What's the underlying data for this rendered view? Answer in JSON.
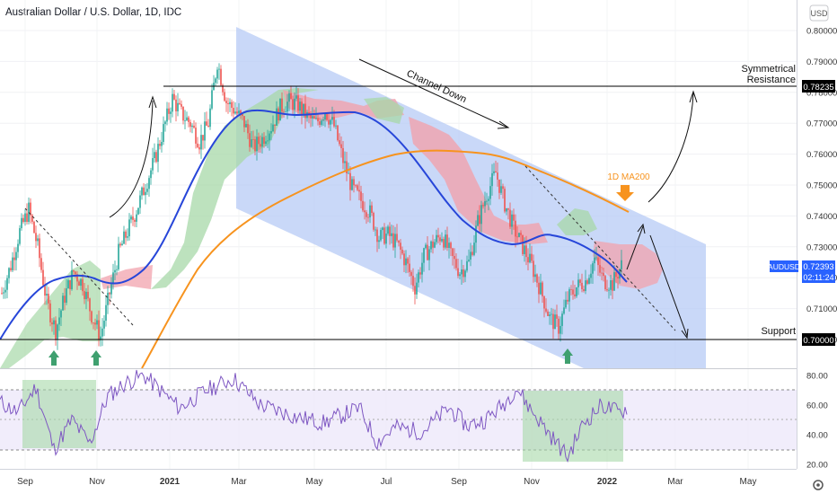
{
  "header": {
    "title": "Australian Dollar / U.S. Dollar, 1D, IDC",
    "currency": "USD"
  },
  "chart_data": {
    "type": "candlestick",
    "symbol": "AUDUSD",
    "price_axis": {
      "ticks": [
        0.8,
        0.79,
        0.78,
        0.77,
        0.76,
        0.75,
        0.74,
        0.73,
        0.72,
        0.71,
        0.7
      ],
      "tick_labels": [
        "0.80000",
        "0.79000",
        "0.78000",
        "0.77000",
        "0.76000",
        "0.75000",
        "0.74000",
        "0.73000",
        "0.72000",
        "0.71000",
        "0.70000"
      ],
      "ylim": [
        0.6985,
        0.8035
      ]
    },
    "rsi_axis": {
      "ticks": [
        80,
        60,
        40,
        20
      ],
      "tick_labels": [
        "80.00",
        "60.00",
        "40.00",
        "20.00"
      ],
      "upper_band": 70,
      "lower_band": 30
    },
    "time_axis": {
      "labels": [
        "Sep",
        "Nov",
        "2021",
        "Mar",
        "May",
        "Jul",
        "Sep",
        "Nov",
        "2022",
        "Mar",
        "May"
      ],
      "bold": [
        "2021",
        "2022"
      ]
    },
    "price_labels": [
      {
        "name": "resistance",
        "value": "0.78235",
        "color": "#000000"
      },
      {
        "name": "current",
        "value": "0.72393",
        "color": "#2962ff"
      },
      {
        "name": "support",
        "value": "0.70000",
        "color": "#000000"
      }
    ],
    "symbol_tag": "AUDUSD",
    "countdown": "02:11:24",
    "annotations": {
      "channel": "Channel Down",
      "ma200": "1D MA200",
      "resistance_line1": "Symmetrical",
      "resistance_line2": "Resistance",
      "support": "Support"
    },
    "levels": {
      "resistance": 0.78235,
      "support": 0.7
    },
    "ohlc_series": [
      {
        "x": 0,
        "y": 0.715
      },
      {
        "x": 5,
        "y": 0.724
      },
      {
        "x": 10,
        "y": 0.735
      },
      {
        "x": 15,
        "y": 0.742
      },
      {
        "x": 20,
        "y": 0.73
      },
      {
        "x": 25,
        "y": 0.712
      },
      {
        "x": 30,
        "y": 0.703
      },
      {
        "x": 35,
        "y": 0.714
      },
      {
        "x": 40,
        "y": 0.722
      },
      {
        "x": 45,
        "y": 0.718
      },
      {
        "x": 50,
        "y": 0.708
      },
      {
        "x": 55,
        "y": 0.701
      },
      {
        "x": 60,
        "y": 0.715
      },
      {
        "x": 65,
        "y": 0.728
      },
      {
        "x": 70,
        "y": 0.735
      },
      {
        "x": 75,
        "y": 0.742
      },
      {
        "x": 80,
        "y": 0.75
      },
      {
        "x": 85,
        "y": 0.758
      },
      {
        "x": 90,
        "y": 0.768
      },
      {
        "x": 95,
        "y": 0.778
      },
      {
        "x": 100,
        "y": 0.773
      },
      {
        "x": 105,
        "y": 0.77
      },
      {
        "x": 110,
        "y": 0.764
      },
      {
        "x": 115,
        "y": 0.77
      },
      {
        "x": 120,
        "y": 0.79
      },
      {
        "x": 125,
        "y": 0.777
      },
      {
        "x": 130,
        "y": 0.774
      },
      {
        "x": 135,
        "y": 0.77
      },
      {
        "x": 140,
        "y": 0.762
      },
      {
        "x": 145,
        "y": 0.765
      },
      {
        "x": 150,
        "y": 0.769
      },
      {
        "x": 155,
        "y": 0.775
      },
      {
        "x": 160,
        "y": 0.777
      },
      {
        "x": 165,
        "y": 0.776
      },
      {
        "x": 170,
        "y": 0.772
      },
      {
        "x": 175,
        "y": 0.77
      },
      {
        "x": 180,
        "y": 0.774
      },
      {
        "x": 185,
        "y": 0.769
      },
      {
        "x": 190,
        "y": 0.758
      },
      {
        "x": 195,
        "y": 0.749
      },
      {
        "x": 200,
        "y": 0.745
      },
      {
        "x": 205,
        "y": 0.741
      },
      {
        "x": 210,
        "y": 0.733
      },
      {
        "x": 215,
        "y": 0.734
      },
      {
        "x": 220,
        "y": 0.731
      },
      {
        "x": 225,
        "y": 0.725
      },
      {
        "x": 230,
        "y": 0.717
      },
      {
        "x": 235,
        "y": 0.727
      },
      {
        "x": 240,
        "y": 0.731
      },
      {
        "x": 245,
        "y": 0.734
      },
      {
        "x": 250,
        "y": 0.727
      },
      {
        "x": 255,
        "y": 0.722
      },
      {
        "x": 260,
        "y": 0.725
      },
      {
        "x": 265,
        "y": 0.738
      },
      {
        "x": 270,
        "y": 0.747
      },
      {
        "x": 275,
        "y": 0.754
      },
      {
        "x": 280,
        "y": 0.744
      },
      {
        "x": 285,
        "y": 0.736
      },
      {
        "x": 290,
        "y": 0.73
      },
      {
        "x": 295,
        "y": 0.724
      },
      {
        "x": 300,
        "y": 0.716
      },
      {
        "x": 305,
        "y": 0.707
      },
      {
        "x": 310,
        "y": 0.704
      },
      {
        "x": 315,
        "y": 0.713
      },
      {
        "x": 320,
        "y": 0.717
      },
      {
        "x": 325,
        "y": 0.719
      },
      {
        "x": 330,
        "y": 0.726
      },
      {
        "x": 335,
        "y": 0.719
      },
      {
        "x": 340,
        "y": 0.718
      },
      {
        "x": 345,
        "y": 0.724
      }
    ],
    "series": [
      {
        "name": "",
        "kind": "ma_blue",
        "values": []
      },
      {
        "name": "",
        "kind": "ma200_orange",
        "values": []
      },
      {
        "name": "",
        "kind": "rsi",
        "values": []
      }
    ]
  }
}
